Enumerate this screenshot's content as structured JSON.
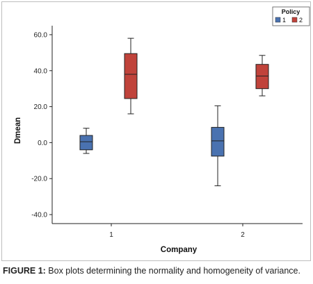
{
  "caption": {
    "label": "FIGURE 1:",
    "text": " Box plots determining the normality and homogeneity of variance."
  },
  "chart_data": {
    "type": "boxplot",
    "xlabel": "Company",
    "ylabel": "Dmean",
    "ylim": [
      -45,
      65
    ],
    "yticks": [
      60,
      40,
      20,
      0,
      -20,
      -40
    ],
    "ytick_labels": [
      "60.0",
      "40.0",
      "20.0",
      "0.0",
      "-20.0",
      "-40.0"
    ],
    "categories": [
      "1",
      "2"
    ],
    "legend": {
      "title": "Policy",
      "placement": "top-right"
    },
    "grid": false,
    "series": [
      {
        "name": "1",
        "color": "#4a72b0",
        "boxes": [
          {
            "category": "1",
            "min": -6,
            "q1": -4,
            "median": 0.5,
            "q3": 4,
            "max": 8
          },
          {
            "category": "2",
            "min": -24,
            "q1": -7.5,
            "median": 1,
            "q3": 8.5,
            "max": 20.5
          }
        ]
      },
      {
        "name": "2",
        "color": "#c0433b",
        "boxes": [
          {
            "category": "1",
            "min": 16,
            "q1": 24.5,
            "median": 38,
            "q3": 49.5,
            "max": 58
          },
          {
            "category": "2",
            "min": 26,
            "q1": 30,
            "median": 37,
            "q3": 43.5,
            "max": 48.5
          }
        ]
      }
    ]
  }
}
